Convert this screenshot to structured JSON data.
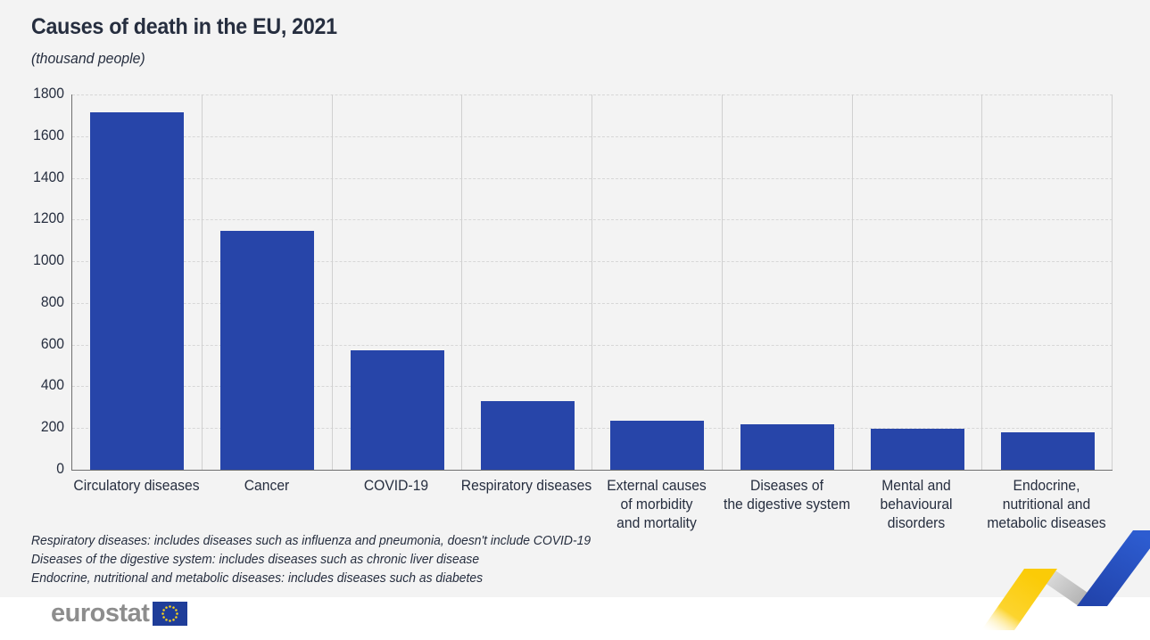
{
  "title": "Causes of death in the EU, 2021",
  "subtitle": "(thousand people)",
  "chart_data": {
    "type": "bar",
    "title": "Causes of death in the EU, 2021",
    "unit_label": "(thousand people)",
    "categories": [
      "Circulatory diseases",
      "Cancer",
      "COVID-19",
      "Respiratory diseases",
      "External causes\nof morbidity\nand mortality",
      "Diseases of\nthe digestive system",
      "Mental and\nbehavioural disorders",
      "Endocrine,\nnutritional and\nmetabolic diseases"
    ],
    "values": [
      1713,
      1145,
      573,
      329,
      236,
      216,
      196,
      178
    ],
    "xlabel": "",
    "ylabel": "",
    "ylim": [
      0,
      1800
    ],
    "yticks": [
      0,
      200,
      400,
      600,
      800,
      1000,
      1200,
      1400,
      1600,
      1800
    ],
    "grid": "horizontal dashed gridlines at each ytick, solid vertical category separators",
    "legend": "none",
    "bar_color": "#2745a9"
  },
  "footnotes": [
    "Respiratory diseases: includes diseases such as influenza and pneumonia, doesn't include COVID-19",
    "Diseases of the digestive system: includes diseases such as chronic liver disease",
    "Endocrine, nutritional and metabolic diseases: includes diseases such as diabetes"
  ],
  "logo": {
    "text": "eurostat",
    "flag_icon": "eu-flag-icon"
  },
  "colors": {
    "bg": "#f3f3f3",
    "footer_bg": "#ffffff",
    "bar": "#2745a9",
    "text_dark": "#262e3f",
    "axis": "#6f6f6f",
    "grid_dash": "#d7d7d7",
    "grid_solid": "#d0d0d0",
    "logo_gray": "#8d8d8d",
    "flag_blue": "#1f3d99",
    "star_yellow": "#ffd617",
    "zig_yellow": "#fbcb07",
    "zig_gray": "#c2c2c2",
    "zig_blue": "#2a57cb"
  }
}
